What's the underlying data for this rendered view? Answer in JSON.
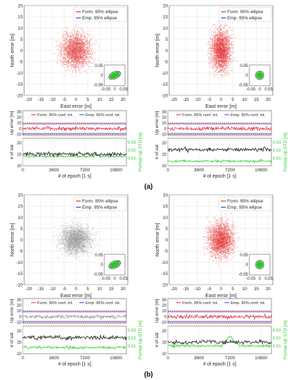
{
  "figure_labels": [
    "(a)",
    "(b)"
  ],
  "chart_data": [
    {
      "type": "scatter",
      "panel": "a-left-scatter",
      "cloud_color": "#e02020",
      "spread": [
        4.5,
        5.5
      ],
      "xlabel": "East error [m]",
      "ylabel": "North error [m]",
      "xlim": [
        -22,
        22
      ],
      "ylim": [
        -20,
        20
      ],
      "xticks": [
        -20,
        -15,
        -10,
        -5,
        0,
        5,
        10,
        15,
        20
      ],
      "yticks": [
        -20,
        -15,
        -10,
        -5,
        0,
        5,
        10,
        15,
        20
      ],
      "legend": [
        "Form. 95% ellipse",
        "Emp. 95% ellipse"
      ],
      "inset": {
        "xlim": [
          -0.06,
          0.06
        ],
        "ylim": [
          -0.06,
          0.06
        ],
        "xticks": [
          "-0.05",
          "0",
          "0.05"
        ],
        "yticks": [
          "0.05",
          "0",
          "-0.05"
        ],
        "tilted": true
      },
      "grid": true
    },
    {
      "type": "scatter",
      "panel": "a-right-scatter",
      "cloud_color": "#e02020",
      "spread": [
        3.0,
        6.5
      ],
      "xlabel": "East error [m]",
      "ylabel": "North error [m]",
      "xlim": [
        -22,
        22
      ],
      "ylim": [
        -20,
        20
      ],
      "xticks": [
        -20,
        -15,
        -10,
        -5,
        0,
        5,
        10,
        15,
        20
      ],
      "yticks": [
        -20,
        -15,
        -10,
        -5,
        0,
        5,
        10,
        15,
        20
      ],
      "legend": [
        "Form. 95% ellipse",
        "Emp. 95% ellipse"
      ],
      "inset": {
        "xlim": [
          -0.06,
          0.06
        ],
        "ylim": [
          -0.06,
          0.06
        ],
        "xticks": [
          "-0.05",
          "0",
          "0.05"
        ],
        "yticks": [
          "0.05",
          "0",
          "-0.05"
        ],
        "tilted": false
      },
      "grid": true
    },
    {
      "type": "scatter",
      "panel": "b-left-scatter",
      "cloud_color": "#8a8a8a",
      "spread": [
        4.5,
        4.5
      ],
      "xlabel": "East error [m]",
      "ylabel": "North error [m]",
      "xlim": [
        -22,
        22
      ],
      "ylim": [
        -20,
        20
      ],
      "xticks": [
        -20,
        -15,
        -10,
        -5,
        0,
        5,
        10,
        15,
        20
      ],
      "yticks": [
        -20,
        -15,
        -10,
        -5,
        0,
        5,
        10,
        15,
        20
      ],
      "legend": [
        "Form. 95% ellipse",
        "Emp. 95% ellipse"
      ],
      "inset": {
        "xlim": [
          -0.06,
          0.06
        ],
        "ylim": [
          -0.06,
          0.06
        ],
        "xticks": [
          "-0.05",
          "0",
          "0.05"
        ],
        "yticks": [
          "0.05",
          "0",
          "-0.05"
        ],
        "tilted": true
      },
      "grid": true
    },
    {
      "type": "scatter",
      "panel": "b-right-scatter",
      "cloud_color": "#e02020",
      "spread": [
        3.8,
        5.5
      ],
      "xlabel": "East error [m]",
      "ylabel": "North error [m]",
      "xlim": [
        -22,
        22
      ],
      "ylim": [
        -20,
        20
      ],
      "xticks": [
        -20,
        -15,
        -10,
        -5,
        0,
        5,
        10,
        15,
        20
      ],
      "yticks": [
        -20,
        -15,
        -10,
        -5,
        0,
        5,
        10,
        15,
        20
      ],
      "legend": [
        "Form. 95% ellipse",
        "Emp. 95% ellipse"
      ],
      "inset": {
        "xlim": [
          -0.06,
          0.06
        ],
        "ylim": [
          -0.06,
          0.06
        ],
        "xticks": [
          "-0.05",
          "0",
          "0.05"
        ],
        "yticks": [
          "0.05",
          "0",
          "-0.05"
        ],
        "tilted": false
      },
      "grid": true
    },
    {
      "type": "line",
      "panel": "a-left-time",
      "up": {
        "ylabel": "Up error [m]",
        "ylim": [
          -12,
          32
        ],
        "yticks": [
          -10,
          0,
          10,
          20,
          30
        ],
        "band": [
          -10,
          10
        ],
        "noise_color": "#e02020",
        "legend": [
          "Form. 95% conf. int.",
          "Emp. 95% conf. int."
        ]
      },
      "sat": {
        "ylabel_left": "# of sat",
        "ylabel_right": "Formal Up STD [m]",
        "ylim_left": [
          10,
          22
        ],
        "ylim_right": [
          0,
          0.035
        ],
        "yticks_left": [
          10,
          15,
          20
        ],
        "yticks_right": [
          "0.01",
          "0.02",
          "0.03"
        ],
        "sat_level": 15,
        "std_level": 0.012
      },
      "xlabel": "# of epoch [1 s]",
      "xlim": [
        0,
        12000
      ],
      "xticks": [
        0,
        3600,
        7200,
        10800
      ]
    },
    {
      "type": "line",
      "panel": "a-right-time",
      "up": {
        "ylabel": "Up error [m]",
        "ylim": [
          -12,
          32
        ],
        "yticks": [
          -10,
          0,
          10,
          20,
          30
        ],
        "band": [
          -10,
          10
        ],
        "noise_color": "#e02020",
        "legend": [
          "Form. 95% conf. int.",
          "Emp. 95% conf. int."
        ]
      },
      "sat": {
        "ylabel_left": "# of sat",
        "ylabel_right": "Formal Up STD [m]",
        "ylim_left": [
          10,
          22
        ],
        "ylim_right": [
          0,
          0.035
        ],
        "yticks_left": [
          10,
          15,
          20
        ],
        "yticks_right": [
          "0.01",
          "0.02",
          "0.03"
        ],
        "sat_level": 17,
        "std_level": 0.006
      },
      "xlabel": "# of epoch [1 s]",
      "xlim": [
        0,
        12000
      ],
      "xticks": [
        0,
        3600,
        7200,
        10800
      ]
    },
    {
      "type": "line",
      "panel": "b-left-time",
      "up": {
        "ylabel": "Up error [m]",
        "ylim": [
          -12,
          32
        ],
        "yticks": [
          -10,
          0,
          10,
          20,
          30
        ],
        "band": [
          -10,
          10
        ],
        "noise_color": "#8a8a8a",
        "legend": [
          "Form. 95% conf. int.",
          "Emp. 95% conf. int."
        ]
      },
      "sat": {
        "ylabel_left": "# of sat",
        "ylabel_right": "Formal Up STD [m]",
        "ylim_left": [
          10,
          22
        ],
        "ylim_right": [
          0,
          0.035
        ],
        "yticks_left": [
          10,
          15,
          20
        ],
        "yticks_right": [
          "0.01",
          "0.02",
          "0.03"
        ],
        "sat_level": 17,
        "std_level": 0.008
      },
      "xlabel": "# of epoch [1 s]",
      "xlim": [
        0,
        12000
      ],
      "xticks": [
        0,
        3600,
        7200,
        10800
      ]
    },
    {
      "type": "line",
      "panel": "b-right-time",
      "up": {
        "ylabel": "Up error [m]",
        "ylim": [
          -12,
          32
        ],
        "yticks": [
          -10,
          0,
          10,
          20,
          30
        ],
        "band": [
          -10,
          10
        ],
        "noise_color": "#e02020",
        "legend": [
          "Form. 95% conf. int.",
          "Emp. 95% conf. int."
        ]
      },
      "sat": {
        "ylabel_left": "# of sat",
        "ylabel_right": "Formal Up STD [m]",
        "ylim_left": [
          10,
          22
        ],
        "ylim_right": [
          0,
          0.035
        ],
        "yticks_left": [
          10,
          15,
          20
        ],
        "yticks_right": [
          "0.01",
          "0.02",
          "0.03"
        ],
        "sat_level": 15,
        "std_level": 0.01,
        "std_peak_epoch": 7200
      },
      "xlabel": "# of epoch [1 s]",
      "xlim": [
        0,
        12000
      ],
      "xticks": [
        0,
        3600,
        7200,
        10800
      ]
    }
  ]
}
